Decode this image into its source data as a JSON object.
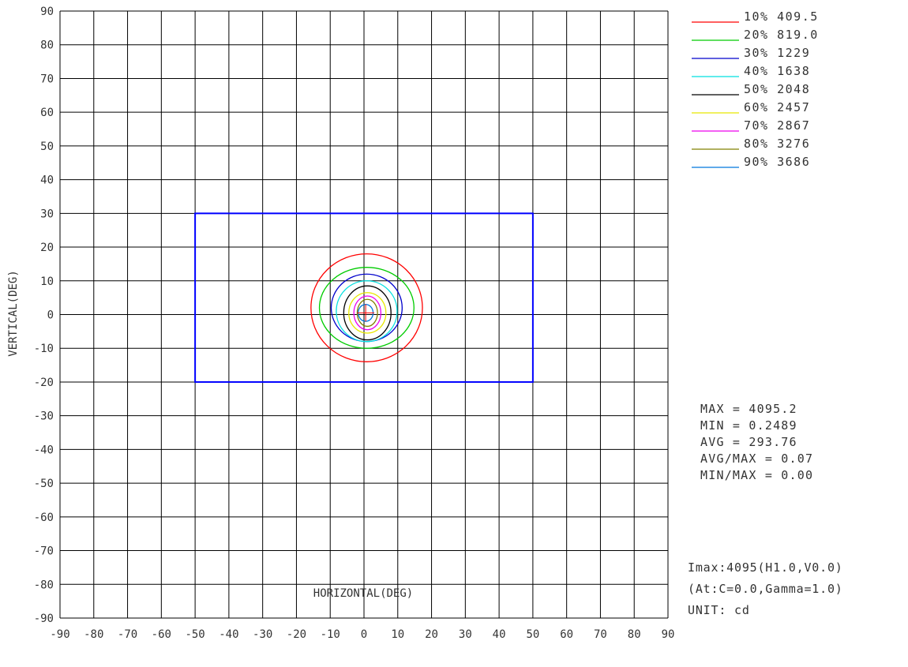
{
  "chart_data": {
    "type": "line",
    "subtype": "isocandela-contour",
    "xlabel": "HORIZONTAL(DEG)",
    "ylabel": "VERTICAL(DEG)",
    "xlim": [
      -90,
      90
    ],
    "ylim": [
      -90,
      90
    ],
    "xticks": [
      "-90",
      "-80",
      "-70",
      "-60",
      "-50",
      "-40",
      "-30",
      "-20",
      "-10",
      "0",
      "10",
      "20",
      "30",
      "40",
      "50",
      "60",
      "70",
      "80",
      "90"
    ],
    "yticks": [
      "90",
      "80",
      "70",
      "60",
      "50",
      "40",
      "30",
      "20",
      "10",
      "0",
      "-10",
      "-20",
      "-30",
      "-40",
      "-50",
      "-60",
      "-70",
      "-80",
      "-90"
    ],
    "grid": true,
    "legend_position": "top-right",
    "boundary_box": {
      "color": "#0000ff",
      "x_range": [
        -50,
        50
      ],
      "y_range": [
        -20,
        30
      ]
    },
    "series": [
      {
        "name": "10% 409.5",
        "color": "#ff0000",
        "cx": 0.8,
        "cy": 2,
        "rx": 16.5,
        "ry": 16
      },
      {
        "name": "20% 819.0",
        "color": "#00cc00",
        "cx": 0.8,
        "cy": 2,
        "rx": 14,
        "ry": 12
      },
      {
        "name": "30% 1229",
        "color": "#0000cc",
        "cx": 0.8,
        "cy": 2,
        "rx": 10.5,
        "ry": 10
      },
      {
        "name": "40% 1638",
        "color": "#00e0e0",
        "cx": 0.8,
        "cy": 1,
        "rx": 9,
        "ry": 9
      },
      {
        "name": "50% 2048",
        "color": "#000000",
        "cx": 1,
        "cy": 0.5,
        "rx": 7,
        "ry": 8
      },
      {
        "name": "60% 2457",
        "color": "#e8e800",
        "cx": 1,
        "cy": 0.5,
        "rx": 5.5,
        "ry": 6
      },
      {
        "name": "70% 2867",
        "color": "#ee00ee",
        "cx": 1,
        "cy": 0.5,
        "rx": 4,
        "ry": 5
      },
      {
        "name": "80% 3276",
        "color": "#808000",
        "cx": 1,
        "cy": 0.5,
        "rx": 3,
        "ry": 4
      },
      {
        "name": "90% 3686",
        "color": "#0077dd",
        "cx": 0.5,
        "cy": 0.5,
        "rx": 2.2,
        "ry": 2.5
      }
    ],
    "stats": [
      "MAX = 4095.2",
      "MIN = 0.2489",
      "AVG = 293.76",
      "AVG/MAX = 0.07",
      "MIN/MAX = 0.00"
    ],
    "notes": [
      "Imax:4095(H1.0,V0.0)",
      " (At:C=0.0,Gamma=1.0)",
      "UNIT: cd"
    ]
  }
}
